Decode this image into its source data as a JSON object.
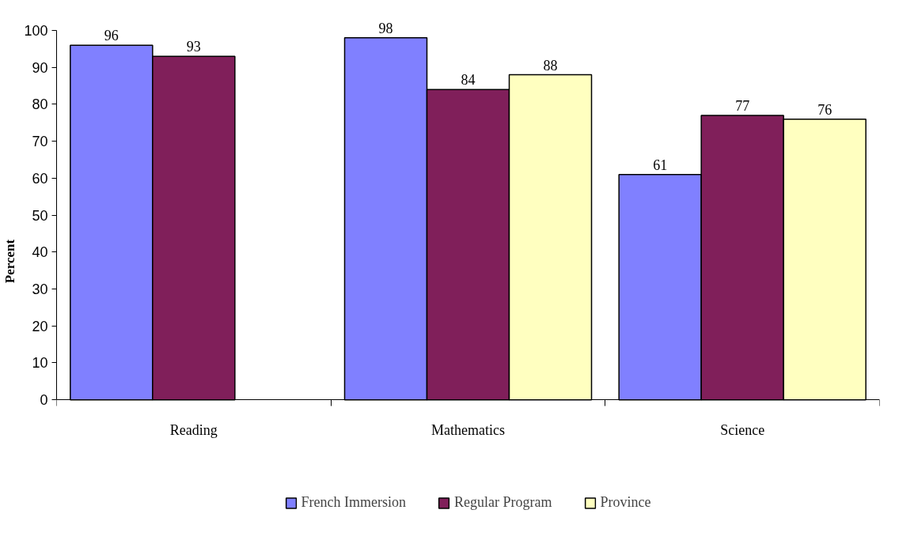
{
  "chart_data": {
    "type": "bar",
    "ylabel": "Percent",
    "categories": [
      "Reading",
      "Mathematics",
      "Science"
    ],
    "series": [
      {
        "name": "French Immersion",
        "color": "#8080ff",
        "values": [
          96,
          98,
          61
        ]
      },
      {
        "name": "Regular Program",
        "color": "#801f5a",
        "values": [
          93,
          84,
          77
        ]
      },
      {
        "name": "Province",
        "color": "#ffffc0",
        "values": [
          null,
          88,
          76
        ]
      }
    ],
    "ylim": [
      0,
      100
    ],
    "yticks": [
      0,
      10,
      20,
      30,
      40,
      50,
      60,
      70,
      80,
      90,
      100
    ],
    "data_labels": true,
    "grid": false,
    "legend": "bottom"
  }
}
